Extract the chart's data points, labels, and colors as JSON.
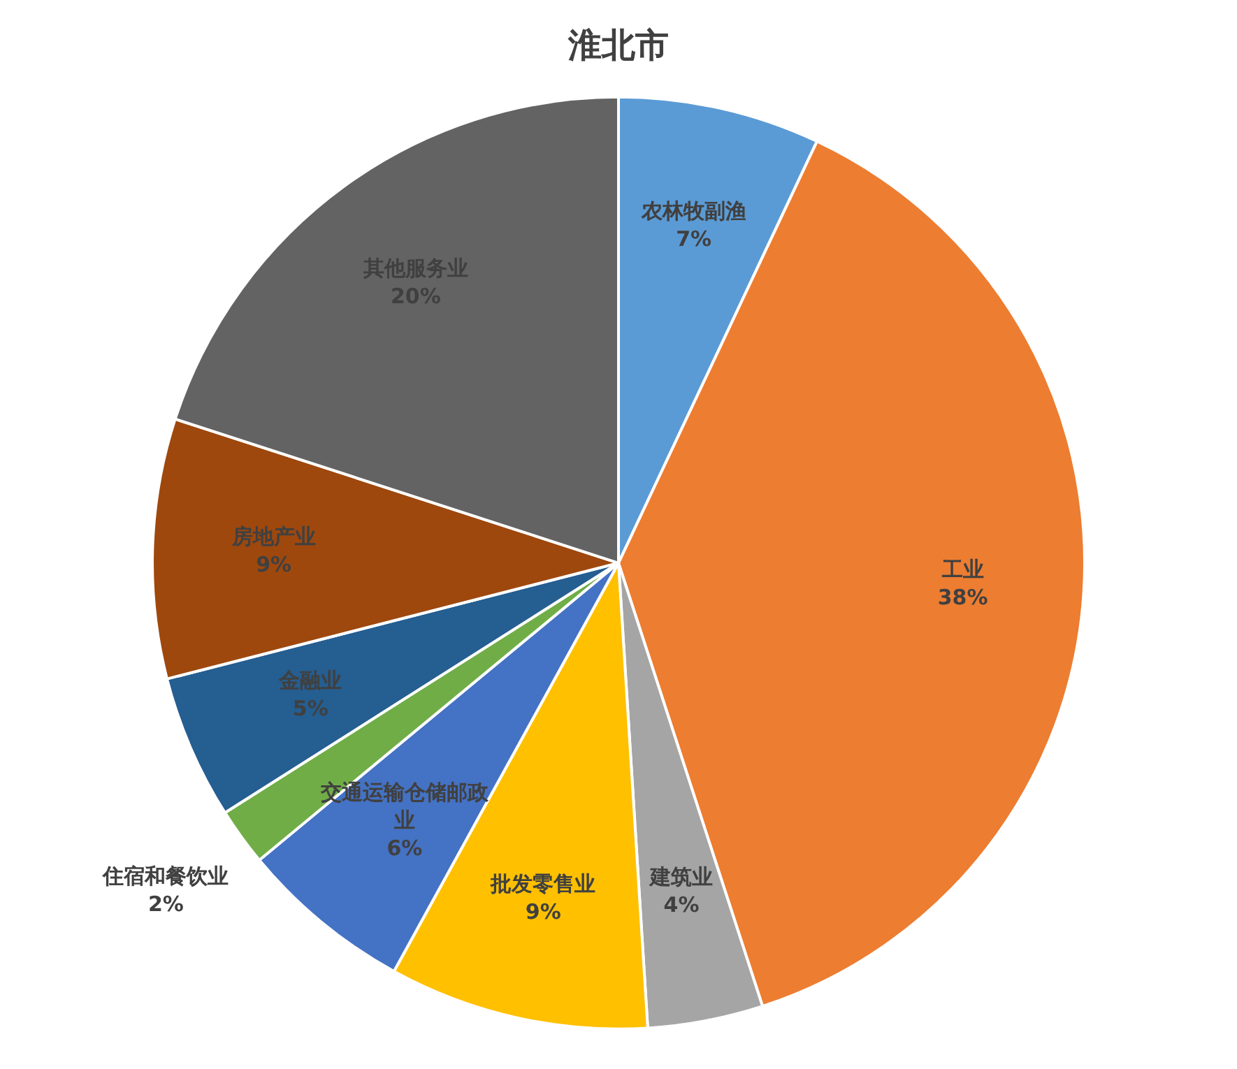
{
  "chart_data": {
    "type": "pie",
    "title": "淮北市",
    "categories": [
      "农林牧副渔",
      "工业",
      "建筑业",
      "批发零售业",
      "交通运输仓储邮政业",
      "住宿和餐饮业",
      "金融业",
      "房地产业",
      "其他服务业"
    ],
    "values": [
      7,
      38,
      4,
      9,
      6,
      2,
      5,
      9,
      20
    ],
    "colors": [
      "#5b9bd5",
      "#ed7d31",
      "#a5a5a5",
      "#ffc000",
      "#4472c4",
      "#70ad47",
      "#255e91",
      "#9e480e",
      "#636363"
    ],
    "value_labels": [
      "7%",
      "38%",
      "4%",
      "9%",
      "6%",
      "2%",
      "5%",
      "9%",
      "20%"
    ],
    "legend": false
  }
}
